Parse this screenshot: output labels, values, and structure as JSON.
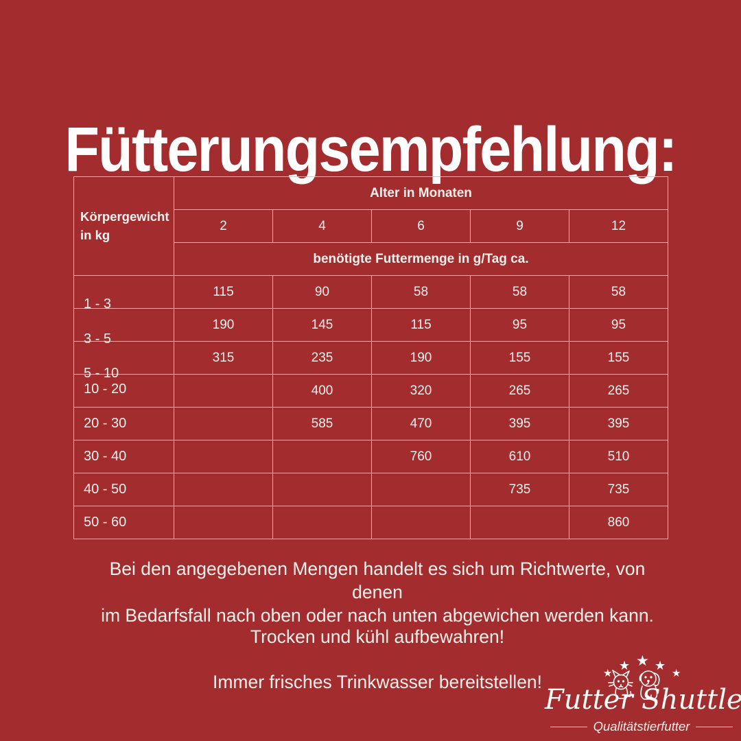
{
  "title": "Fütterungsempfehlung:",
  "colors": {
    "background": "#A32D2E",
    "table_border": "#D8C7C1",
    "text": "#FFFFFF"
  },
  "table": {
    "weight_header_line1": "Körpergewicht",
    "weight_header_line2": "in kg",
    "age_header": "Alter in Monaten",
    "ages": [
      "2",
      "4",
      "6",
      "9",
      "12"
    ],
    "amount_header": "benötigte Futtermenge in g/Tag ca.",
    "rows": [
      {
        "weight": "1 - 3",
        "values": [
          "115",
          "90",
          "58",
          "58",
          "58"
        ]
      },
      {
        "weight": "3 - 5",
        "values": [
          "190",
          "145",
          "115",
          "95",
          "95"
        ]
      },
      {
        "weight": "5 - 10",
        "values": [
          "315",
          "235",
          "190",
          "155",
          "155"
        ]
      },
      {
        "weight": "10 - 20",
        "values": [
          "",
          "400",
          "320",
          "265",
          "265"
        ]
      },
      {
        "weight": "20 - 30",
        "values": [
          "",
          "585",
          "470",
          "395",
          "395"
        ]
      },
      {
        "weight": "30 - 40",
        "values": [
          "",
          "",
          "760",
          "610",
          "510"
        ]
      },
      {
        "weight": "40 - 50",
        "values": [
          "",
          "",
          "",
          "735",
          "735"
        ]
      },
      {
        "weight": "50 - 60",
        "values": [
          "",
          "",
          "",
          "",
          "860"
        ]
      }
    ]
  },
  "notes": {
    "guideline_line1": "Bei den angegebenen Mengen handelt es sich um Richtwerte, von denen",
    "guideline_line2": "im Bedarfsfall nach oben oder nach unten abgewichen werden kann.",
    "storage": "Trocken und kühl aufbewahren!",
    "water": "Immer frisches Trinkwasser bereitstellen!"
  },
  "logo": {
    "brand": "Futter Shuttle",
    "tagline": "Qualitätstierfutter",
    "star_count": 5,
    "star_glyph": "★"
  }
}
